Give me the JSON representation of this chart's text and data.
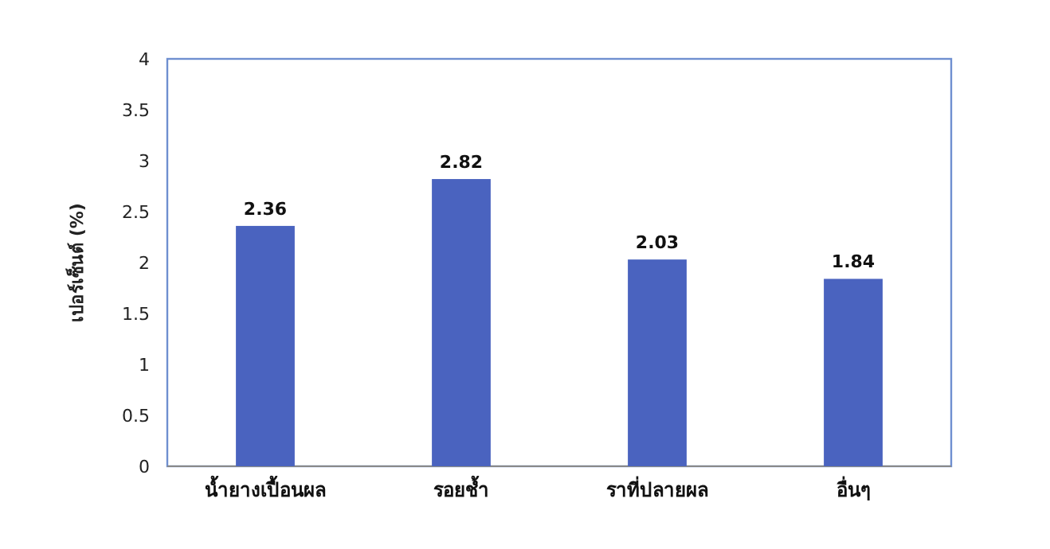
{
  "chart_data": {
    "type": "bar",
    "ylabel": "เปอร์เซ็นต์ (%)",
    "categories": [
      "น้ำยางเปื้อนผล",
      "รอยช้ำ",
      "ราที่ปลายผล",
      "อื่นๆ"
    ],
    "values": [
      2.36,
      2.82,
      2.03,
      1.84
    ],
    "color": "#4a63bf",
    "ylim": [
      0,
      4
    ],
    "yticks": [
      0,
      0.5,
      1,
      1.5,
      2,
      2.5,
      3,
      3.5,
      4
    ],
    "data_labels": true
  }
}
